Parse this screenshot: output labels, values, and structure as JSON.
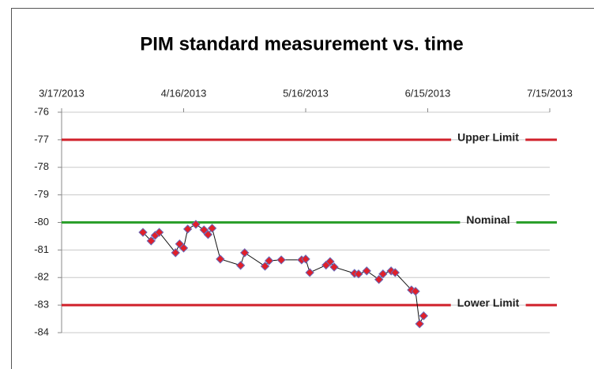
{
  "chart_data": {
    "type": "scatter",
    "title": "PIM standard measurement vs. time",
    "x": [
      "2013-04-06",
      "2013-04-08",
      "2013-04-09",
      "2013-04-10",
      "2013-04-14",
      "2013-04-15",
      "2013-04-16",
      "2013-04-17",
      "2013-04-19",
      "2013-04-21",
      "2013-04-22",
      "2013-04-23",
      "2013-04-25",
      "2013-04-30",
      "2013-05-01",
      "2013-05-06",
      "2013-05-07",
      "2013-05-10",
      "2013-05-15",
      "2013-05-16",
      "2013-05-17",
      "2013-05-21",
      "2013-05-22",
      "2013-05-23",
      "2013-05-28",
      "2013-05-29",
      "2013-05-31",
      "2013-06-03",
      "2013-06-04",
      "2013-06-06",
      "2013-06-07",
      "2013-06-11",
      "2013-06-12",
      "2013-06-13",
      "2013-06-14"
    ],
    "series": [
      {
        "color": "#e0202a",
        "values": [
          -80.36,
          -80.67,
          -80.47,
          -80.36,
          -81.1,
          -80.78,
          -80.93,
          -80.24,
          -80.07,
          -80.27,
          -80.44,
          -80.21,
          -81.33,
          -81.56,
          -81.1,
          -81.59,
          -81.39,
          -81.36,
          -81.36,
          -81.33,
          -81.82,
          -81.55,
          -81.42,
          -81.62,
          -81.85,
          -81.87,
          -81.76,
          -82.07,
          -81.87,
          -81.76,
          -81.82,
          -82.45,
          -82.5,
          -83.68,
          -83.39
        ]
      }
    ],
    "xlim": [
      "2013-03-17",
      "2013-07-15"
    ],
    "xticks": [
      {
        "value": "2013-03-17",
        "label": "3/17/2013"
      },
      {
        "value": "2013-04-16",
        "label": "4/16/2013"
      },
      {
        "value": "2013-05-16",
        "label": "5/16/2013"
      },
      {
        "value": "2013-06-15",
        "label": "6/15/2013"
      },
      {
        "value": "2013-07-15",
        "label": "7/15/2013"
      }
    ],
    "ylim": [
      -76,
      -84
    ],
    "yticks": [
      -76,
      -77,
      -78,
      -79,
      -80,
      -81,
      -82,
      -83,
      -84
    ],
    "grid": true,
    "reference_lines": [
      {
        "label": "Upper Limit",
        "value": -77,
        "color": "#d0202a"
      },
      {
        "label": "Nominal",
        "value": -80,
        "color": "#2ca02c"
      },
      {
        "label": "Lower Limit",
        "value": -83,
        "color": "#d0202a"
      }
    ]
  }
}
